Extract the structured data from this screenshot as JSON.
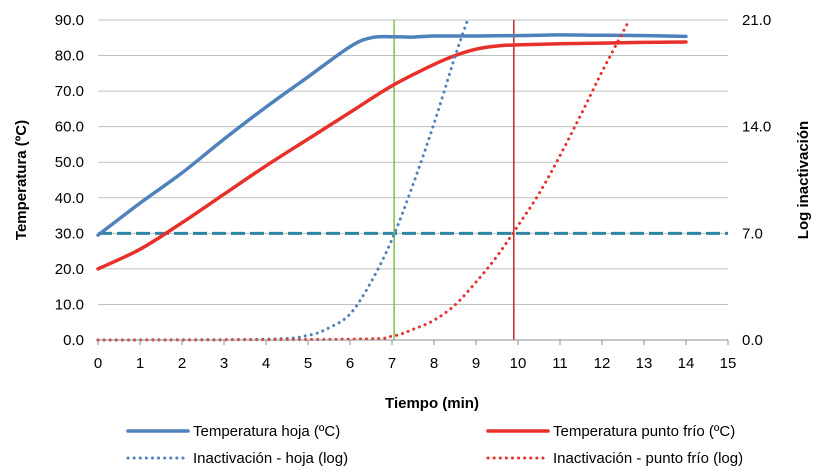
{
  "chart_data": {
    "type": "line",
    "xlabel": "Tiempo (min)",
    "ylabel": "Temperatura (ºC)",
    "y2label": "Log inactivación",
    "xlim": [
      0,
      15
    ],
    "ylim": [
      0,
      90
    ],
    "y2lim": [
      0,
      21
    ],
    "x_ticks": [
      "0",
      "1",
      "2",
      "3",
      "4",
      "5",
      "6",
      "7",
      "8",
      "9",
      "10",
      "11",
      "12",
      "13",
      "14",
      "15"
    ],
    "y_ticks": [
      "0.0",
      "10.0",
      "20.0",
      "30.0",
      "40.0",
      "50.0",
      "60.0",
      "70.0",
      "80.0",
      "90.0"
    ],
    "y2_ticks": [
      "0.0",
      "7.0",
      "14.0",
      "21.0"
    ],
    "grid": "horizontal",
    "legend_position": "bottom",
    "reference_lines": [
      {
        "axis": "y",
        "value": 30,
        "color": "#2E86A6",
        "style": "dashed"
      },
      {
        "axis": "x",
        "value": 7.05,
        "color": "#7DC242",
        "style": "solid"
      },
      {
        "axis": "x",
        "value": 9.9,
        "color": "#C0282D",
        "style": "solid"
      }
    ],
    "series": [
      {
        "name": "Temperatura hoja (ºC)",
        "axis": "left",
        "color": "#4F81BD",
        "style": "solid",
        "x": [
          0,
          1,
          2,
          3,
          4,
          5,
          6,
          6.5,
          7,
          7.5,
          8,
          9,
          10,
          11,
          12,
          13,
          14
        ],
        "y": [
          29.5,
          38.5,
          47,
          56.5,
          65.5,
          74,
          82.5,
          85,
          85.3,
          85.2,
          85.5,
          85.5,
          85.6,
          85.8,
          85.7,
          85.6,
          85.4
        ]
      },
      {
        "name": "Temperatura punto frío (ºC)",
        "axis": "left",
        "color": "#E8302B",
        "style": "solid",
        "x": [
          0,
          1,
          2,
          3,
          4,
          5,
          6,
          7,
          8,
          8.5,
          9,
          9.5,
          10,
          11,
          12,
          13,
          14
        ],
        "y": [
          20,
          25.5,
          33,
          41,
          49,
          56.5,
          64,
          71.5,
          77.5,
          80,
          81.8,
          82.7,
          83,
          83.3,
          83.5,
          83.7,
          83.8
        ]
      },
      {
        "name": "Inactivación - hoja (log)",
        "axis": "right",
        "color": "#4F81BD",
        "style": "dotted",
        "x": [
          0,
          4,
          5,
          5.5,
          6,
          6.5,
          7,
          7.5,
          8,
          8.5,
          8.8
        ],
        "y": [
          0,
          0.05,
          0.3,
          0.8,
          1.7,
          3.8,
          6.6,
          10.2,
          14.2,
          18.6,
          21
        ]
      },
      {
        "name": "Inactivación - punto frío (log)",
        "axis": "right",
        "color": "#E8302B",
        "style": "dotted",
        "x": [
          0,
          6,
          7,
          7.5,
          8,
          8.5,
          9,
          9.5,
          10,
          10.5,
          11,
          11.5,
          12,
          12.65
        ],
        "y": [
          0,
          0.05,
          0.25,
          0.7,
          1.3,
          2.3,
          3.8,
          5.5,
          7.5,
          9.6,
          12.1,
          14.8,
          17.6,
          21
        ]
      }
    ]
  }
}
